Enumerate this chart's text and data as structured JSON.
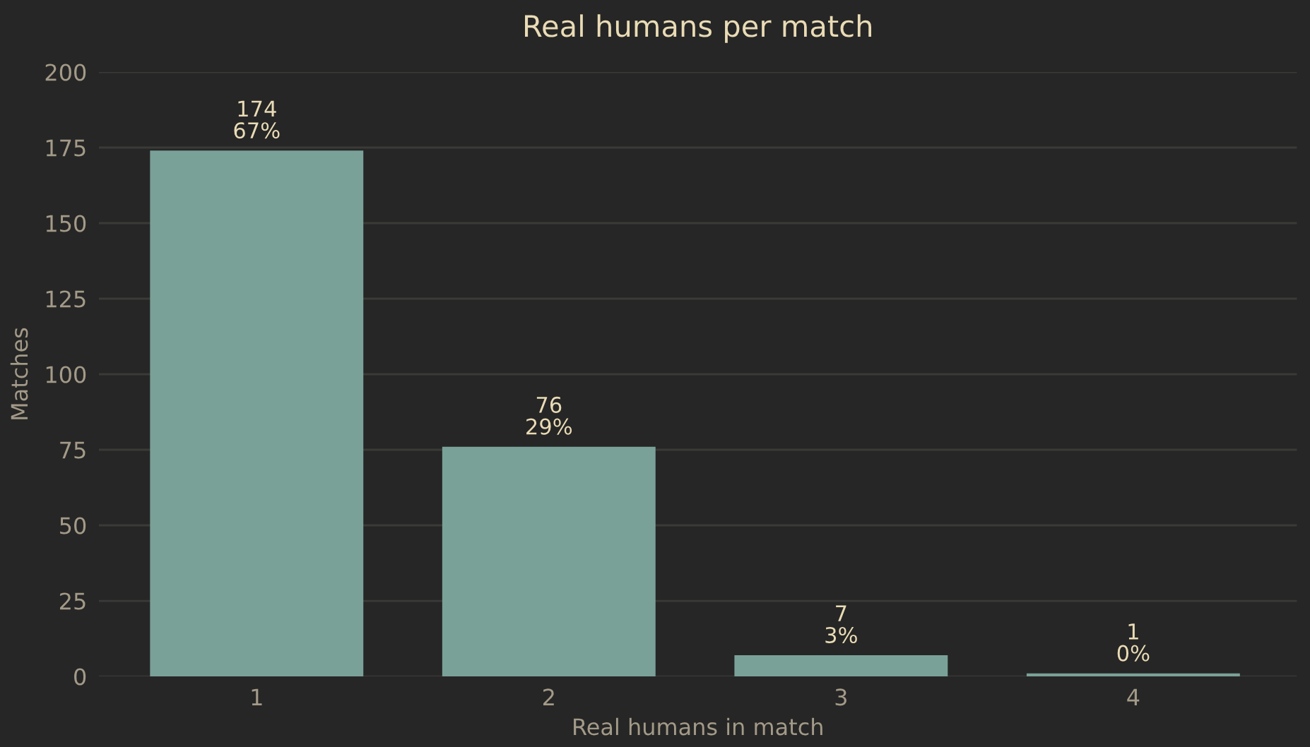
{
  "chart_data": {
    "type": "bar",
    "title": "Real humans per match",
    "xlabel": "Real humans in match",
    "ylabel": "Matches",
    "categories": [
      "1",
      "2",
      "3",
      "4"
    ],
    "values": [
      174,
      76,
      7,
      1
    ],
    "color": "#7aa198",
    "value_labels": [
      "174\n67%",
      "76\n29%",
      "7\n3%",
      "1\n0%"
    ],
    "ylim": [
      0,
      200
    ],
    "yticks": [
      0,
      25,
      50,
      75,
      100,
      125,
      150,
      175,
      200
    ],
    "grid": "y"
  }
}
